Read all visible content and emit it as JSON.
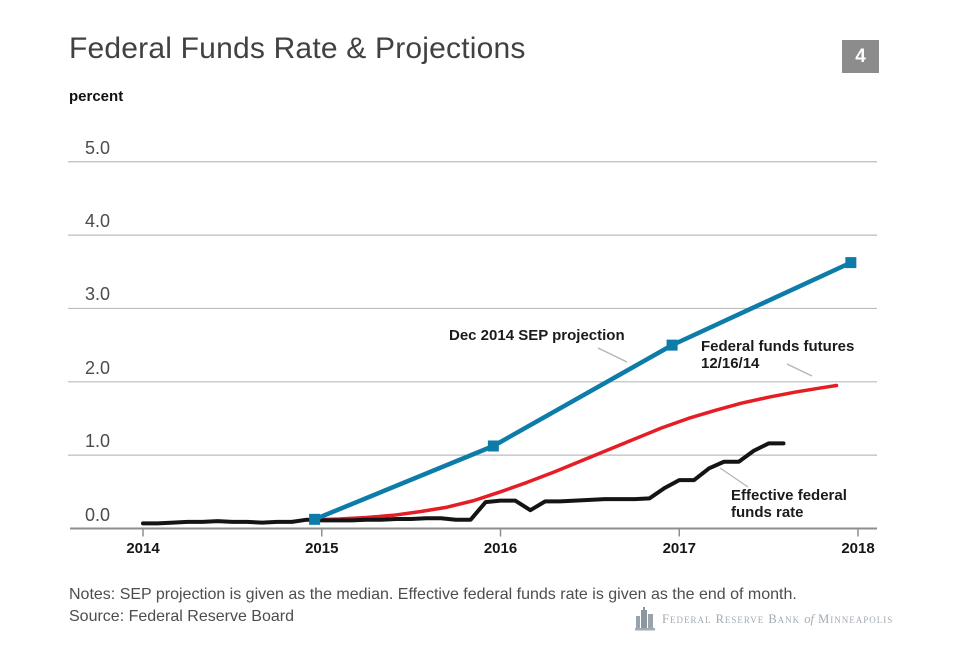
{
  "slide": {
    "number": "4"
  },
  "header": {
    "title": "Federal Funds Rate & Projections",
    "unit_label": "percent"
  },
  "chart_data": {
    "type": "line",
    "title": "Federal Funds Rate & Projections",
    "ylabel": "percent",
    "xlabel": "",
    "ylim": [
      0,
      5.4
    ],
    "xlim": [
      2013.58,
      2018.11
    ],
    "grid": "horizontal",
    "legend_position": "inline-annotations",
    "yticks": [
      0,
      1,
      2,
      3,
      4,
      5
    ],
    "ytick_labels": [
      "0.0",
      "1.0",
      "2.0",
      "3.0",
      "4.0",
      "5.0"
    ],
    "xticks": [
      2014,
      2015,
      2016,
      2017,
      2018
    ],
    "xtick_labels": [
      "2014",
      "2015",
      "2016",
      "2017",
      "2018"
    ],
    "series": [
      {
        "name": "Dec 2014 SEP projection",
        "color": "#0d7ca8",
        "line_width": 4.5,
        "marker": "square",
        "x": [
          2014.96,
          2015.96,
          2016.96,
          2017.96
        ],
        "y": [
          0.125,
          1.125,
          2.5,
          3.625
        ]
      },
      {
        "name": "Federal funds futures 12/16/14",
        "color": "#e51d25",
        "line_width": 3.5,
        "marker": "none",
        "x": [
          2014.96,
          2015.1,
          2015.25,
          2015.4,
          2015.55,
          2015.7,
          2015.85,
          2016.0,
          2016.15,
          2016.3,
          2016.45,
          2016.6,
          2016.75,
          2016.9,
          2017.05,
          2017.2,
          2017.35,
          2017.5,
          2017.65,
          2017.8,
          2017.88
        ],
        "y": [
          0.12,
          0.13,
          0.15,
          0.18,
          0.23,
          0.29,
          0.38,
          0.5,
          0.63,
          0.77,
          0.92,
          1.07,
          1.22,
          1.37,
          1.5,
          1.61,
          1.71,
          1.79,
          1.86,
          1.92,
          1.95
        ]
      },
      {
        "name": "Effective federal funds rate",
        "color": "#141414",
        "line_width": 4,
        "marker": "none",
        "x": [
          2014.0,
          2014.083,
          2014.167,
          2014.25,
          2014.333,
          2014.417,
          2014.5,
          2014.583,
          2014.667,
          2014.75,
          2014.833,
          2014.917,
          2015.0,
          2015.083,
          2015.167,
          2015.25,
          2015.333,
          2015.417,
          2015.5,
          2015.583,
          2015.667,
          2015.75,
          2015.833,
          2015.917,
          2016.0,
          2016.083,
          2016.167,
          2016.25,
          2016.333,
          2016.417,
          2016.5,
          2016.583,
          2016.667,
          2016.75,
          2016.833,
          2016.917,
          2017.0,
          2017.083,
          2017.167,
          2017.25,
          2017.333,
          2017.417,
          2017.5,
          2017.583
        ],
        "y": [
          0.07,
          0.07,
          0.08,
          0.09,
          0.09,
          0.1,
          0.09,
          0.09,
          0.08,
          0.09,
          0.09,
          0.12,
          0.11,
          0.11,
          0.11,
          0.12,
          0.12,
          0.13,
          0.13,
          0.14,
          0.14,
          0.12,
          0.12,
          0.36,
          0.38,
          0.38,
          0.25,
          0.37,
          0.37,
          0.38,
          0.39,
          0.4,
          0.4,
          0.4,
          0.41,
          0.55,
          0.66,
          0.66,
          0.82,
          0.91,
          0.91,
          1.06,
          1.16,
          1.16
        ]
      }
    ]
  },
  "annotations": {
    "sep": {
      "text": "Dec 2014 SEP projection"
    },
    "futures": {
      "line1": "Federal funds futures",
      "line2": "12/16/14"
    },
    "effective": {
      "line1": "Effective federal",
      "line2": "funds rate"
    }
  },
  "notes": {
    "line1": "Notes: SEP projection is given as the median. Effective federal funds rate is given as the end of month.",
    "line2": "Source: Federal Reserve Board"
  },
  "logo": {
    "part1": "Federal Reserve Bank",
    "part2": "of",
    "part3": "Minneapolis"
  }
}
